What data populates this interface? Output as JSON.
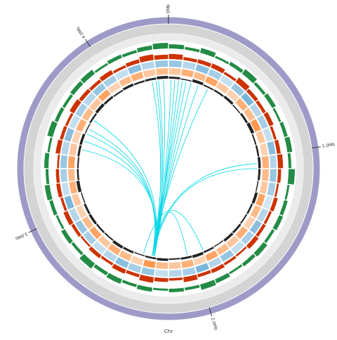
{
  "chart_data": {
    "type": "circos",
    "axis_label": "Chr",
    "genome_length": 4.4,
    "ticks": [
      {
        "value": 0,
        "label": "0Mb"
      },
      {
        "value": 1.0,
        "label": "1.0Mb"
      },
      {
        "value": 2.0,
        "label": "2.0Mb"
      },
      {
        "value": 3.0,
        "label": "3.0Mb"
      },
      {
        "value": 4.0,
        "label": "4.0Mb"
      }
    ],
    "ideogram_color": "#9e9ac8",
    "gc_content": {
      "color": "#238b45",
      "ylim": [
        0,
        1
      ],
      "values": [
        0.6,
        0.4,
        0.7,
        0.3,
        0.5,
        0.8,
        0.4,
        0.6,
        0.3,
        0.5,
        0.7,
        0.4,
        0.9,
        0.3,
        0.5,
        0.6,
        0.4,
        0.7,
        0.5,
        0.3,
        0.6,
        0.8,
        0.4,
        0.5,
        0.3,
        0.6,
        0.4,
        0.7,
        0.5,
        0.9,
        0.4,
        0.6,
        0.3,
        0.5,
        0.7,
        0.4,
        0.6,
        0.3,
        0.8,
        0.5,
        0.4,
        0.6,
        0.7,
        0.3,
        0.5,
        0.4,
        0.6,
        0.8
      ]
    },
    "gc_skew": {
      "color": "#cc3300",
      "ylim": [
        0,
        1
      ],
      "values": [
        0.8,
        0.5,
        0.6,
        0.7,
        0.4,
        0.9,
        0.6,
        0.5,
        0.7,
        0.4,
        0.6,
        0.8,
        0.5,
        0.3,
        0.6,
        0.4,
        0.5,
        0.7,
        0.3,
        0.4,
        0.6,
        0.5,
        0.8,
        0.4,
        0.6,
        0.9,
        0.5,
        0.7,
        0.4,
        0.6,
        0.3,
        0.5,
        0.7,
        0.4,
        0.6,
        0.5,
        0.3,
        0.7,
        0.5,
        0.4,
        0.8,
        0.6,
        0.5,
        0.7,
        0.4,
        0.6,
        0.9,
        0.7
      ]
    },
    "forward_genes": {
      "color": "#6baed6",
      "values": [
        0.7,
        0.5,
        0.8,
        0.6,
        0.4,
        0.7,
        0.9,
        0.5,
        0.6,
        0.4,
        0.8,
        0.5,
        0.7,
        0.6,
        0.3,
        0.5,
        0.8,
        0.6,
        0.4,
        0.7,
        0.5,
        0.9,
        0.6,
        0.5,
        0.4,
        0.7,
        0.6,
        0.8,
        0.5,
        0.4,
        0.6,
        0.7,
        0.5,
        0.9,
        0.4,
        0.6,
        0.7,
        0.5,
        0.8,
        0.4,
        0.6,
        0.5,
        0.7,
        0.6,
        0.4,
        0.8,
        0.5,
        0.7
      ]
    },
    "reverse_genes": {
      "color": "#fd8d3c",
      "values": [
        0.5,
        0.7,
        0.6,
        0.8,
        0.5,
        0.4,
        0.7,
        0.6,
        0.9,
        0.5,
        0.4,
        0.7,
        0.6,
        0.5,
        0.8,
        0.6,
        0.4,
        0.7,
        0.5,
        0.6,
        0.8,
        0.4,
        0.7,
        0.5,
        0.6,
        0.9,
        0.4,
        0.6,
        0.7,
        0.5,
        0.8,
        0.6,
        0.4,
        0.5,
        0.7,
        0.6,
        0.8,
        0.5,
        0.4,
        0.7,
        0.6,
        0.5,
        0.8,
        0.4,
        0.6,
        0.7,
        0.5,
        0.6
      ]
    },
    "features": {
      "color": "#222222",
      "ylim": [
        0,
        1
      ],
      "values": [
        0.6,
        0.3,
        0.8,
        0.4,
        0.5,
        0.7,
        0.3,
        0.6,
        0.9,
        0.4,
        0.5,
        0.7,
        0.6,
        0.3,
        0.8,
        0.5,
        0.4,
        0.6,
        0.7,
        0.3,
        0.5,
        0.8,
        0.6,
        0.4,
        0.7,
        0.5,
        0.3,
        0.6,
        0.8,
        0.4,
        0.5,
        0.7,
        0.6,
        0.3,
        0.9,
        0.5,
        0.4,
        0.6,
        0.7,
        0.3,
        0.5,
        0.8,
        0.6,
        0.4,
        0.7,
        0.5,
        0.6,
        0.8
      ]
    },
    "link_color": "#00d7e6",
    "links": [
      [
        0.02,
        2.32
      ],
      [
        0.05,
        2.31
      ],
      [
        0.08,
        2.32
      ],
      [
        0.11,
        2.33
      ],
      [
        0.14,
        2.32
      ],
      [
        0.18,
        2.31
      ],
      [
        0.24,
        2.32
      ],
      [
        0.32,
        2.33
      ],
      [
        4.36,
        2.32
      ],
      [
        4.32,
        2.31
      ],
      [
        4.3,
        2.33
      ],
      [
        4.27,
        2.32
      ],
      [
        3.45,
        2.31
      ],
      [
        3.52,
        2.32
      ],
      [
        3.58,
        2.33
      ],
      [
        3.62,
        2.32
      ],
      [
        3.7,
        2.31
      ],
      [
        1.06,
        2.33
      ],
      [
        1.1,
        2.32
      ],
      [
        2.05,
        2.32
      ],
      [
        1.92,
        2.4
      ]
    ]
  }
}
